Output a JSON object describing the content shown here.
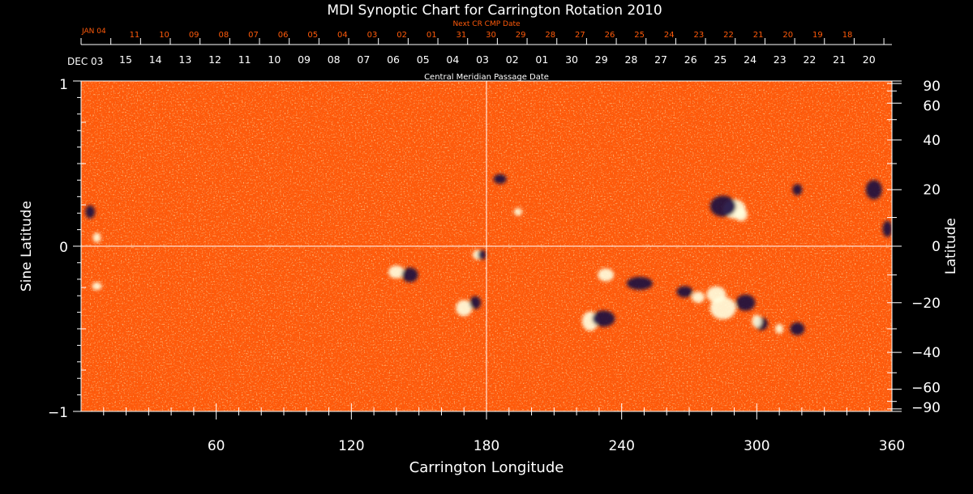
{
  "chart_data": {
    "type": "heatmap",
    "title": "MDI Synoptic Chart for Carrington Rotation 2010",
    "xlabel": "Carrington Longitude",
    "ylabel_left": "Sine Latitude",
    "ylabel_right": "Latitude",
    "top_axis_label": "Central Meridian Passage Date",
    "next_cr_label": "Next CR CMP Date",
    "start_date_label": "DEC 03",
    "next_start_label": "JAN 04",
    "xlim": [
      0,
      360
    ],
    "ylim_sine": [
      -1,
      1
    ],
    "x_ticks": [
      "60",
      "120",
      "180",
      "240",
      "300",
      "360"
    ],
    "y_ticks_left": [
      "1",
      "0",
      "−1"
    ],
    "y_ticks_right": [
      "90",
      "60",
      "40",
      "20",
      "0",
      "−20",
      "−40",
      "−60",
      "−90"
    ],
    "cmp_dates": [
      "15",
      "14",
      "13",
      "12",
      "11",
      "10",
      "09",
      "08",
      "07",
      "06",
      "05",
      "04",
      "03",
      "02",
      "01",
      "30",
      "29",
      "28",
      "27",
      "26",
      "25",
      "24",
      "23",
      "22",
      "21",
      "20"
    ],
    "next_cr_dates": [
      "11",
      "10",
      "09",
      "08",
      "07",
      "06",
      "05",
      "04",
      "03",
      "02",
      "01",
      "31",
      "30",
      "29",
      "28",
      "27",
      "26",
      "25",
      "24",
      "23",
      "22",
      "21",
      "20",
      "19",
      "18"
    ],
    "colors": {
      "background": "#ff5a0a",
      "positive": "#ffffe0",
      "negative": "#1a0a40",
      "next_cr": "#ff5a0a",
      "grid": "#ffffff"
    }
  }
}
